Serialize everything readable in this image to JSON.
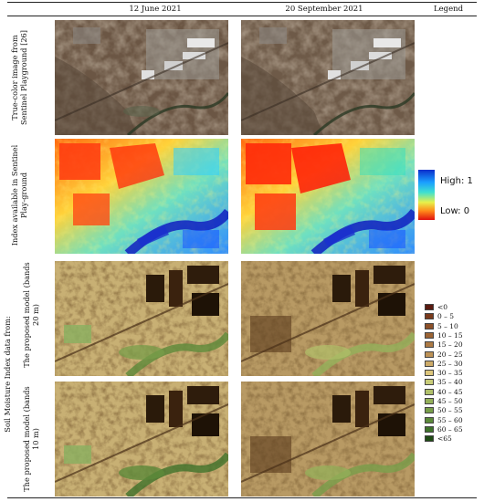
{
  "headers": {
    "col1": "12 June 2021",
    "col2": "20 September 2021",
    "legend": "Legend"
  },
  "rows": {
    "truecolor": "True-color image from Sentinel Playground [26]",
    "index": "Index available in Sentinel Play-ground",
    "smi_group": "Soil Moisture Index data from:",
    "model20": "The proposed model (bands 20 m)",
    "model10": "The proposed model (bands 10 m)"
  },
  "colorbar": {
    "high": "High: 1",
    "low": "Low: 0"
  },
  "smi_legend": [
    {
      "label": "<0",
      "color": "#5a1a10"
    },
    {
      "label": "0 – 5",
      "color": "#7a3a1c"
    },
    {
      "label": "5 – 10",
      "color": "#8c5028"
    },
    {
      "label": "10 – 15",
      "color": "#9c6434"
    },
    {
      "label": "15 – 20",
      "color": "#ad7a44"
    },
    {
      "label": "20 – 25",
      "color": "#bd9256"
    },
    {
      "label": "25 – 30",
      "color": "#cdab68"
    },
    {
      "label": "30 – 35",
      "color": "#dcc67c"
    },
    {
      "label": "35 – 40",
      "color": "#c8cc78"
    },
    {
      "label": "40 – 45",
      "color": "#b0c06a"
    },
    {
      "label": "45 – 50",
      "color": "#94b05a"
    },
    {
      "label": "50 – 55",
      "color": "#789e4a"
    },
    {
      "label": "55 – 60",
      "color": "#5c8a3a"
    },
    {
      "label": "60 – 65",
      "color": "#3e722a"
    },
    {
      "label": "<65",
      "color": "#1e4a14"
    }
  ]
}
